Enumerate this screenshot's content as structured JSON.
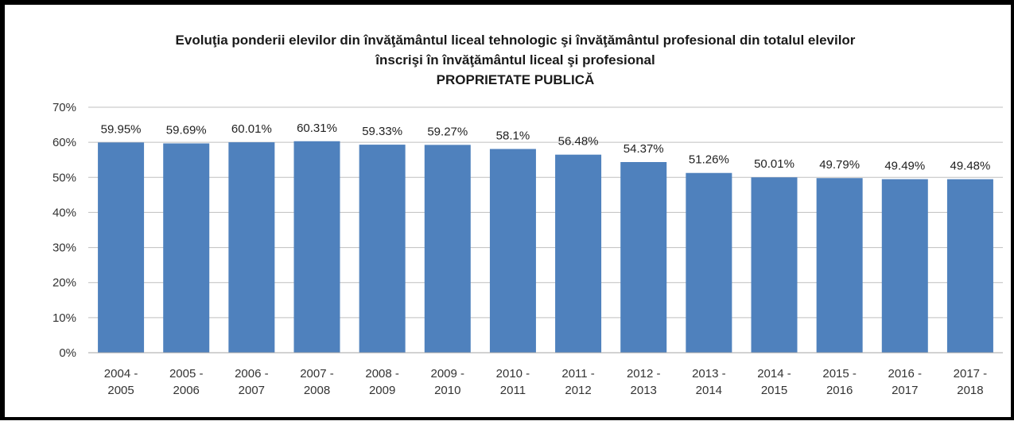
{
  "chart_data": {
    "type": "bar",
    "title_lines": [
      "Evoluţia ponderii elevilor din învăţământul liceal tehnologic şi învăţământul profesional din totalul elevilor",
      "înscrişi în învăţământul liceal şi profesional",
      "PROPRIETATE PUBLICĂ"
    ],
    "xlabel": "",
    "ylabel": "",
    "ylim": [
      0,
      70
    ],
    "y_ticks": [
      "0%",
      "10%",
      "20%",
      "30%",
      "40%",
      "50%",
      "60%",
      "70%"
    ],
    "grid": true,
    "legend": "none",
    "categories": [
      [
        "2004 -",
        "2005"
      ],
      [
        "2005 -",
        "2006"
      ],
      [
        "2006 -",
        "2007"
      ],
      [
        "2007 -",
        "2008"
      ],
      [
        "2008 -",
        "2009"
      ],
      [
        "2009 -",
        "2010"
      ],
      [
        "2010 -",
        "2011"
      ],
      [
        "2011 -",
        "2012"
      ],
      [
        "2012 -",
        "2013"
      ],
      [
        "2013 -",
        "2014"
      ],
      [
        "2014 -",
        "2015"
      ],
      [
        "2015 -",
        "2016"
      ],
      [
        "2016 -",
        "2017"
      ],
      [
        "2017 -",
        "2018"
      ]
    ],
    "values": [
      59.95,
      59.69,
      60.01,
      60.31,
      59.33,
      59.27,
      58.1,
      56.48,
      54.37,
      51.26,
      50.01,
      49.79,
      49.49,
      49.48
    ],
    "data_labels": [
      "59.95%",
      "59.69%",
      "60.01%",
      "60.31%",
      "59.33%",
      "59.27%",
      "58.1%",
      "56.48%",
      "54.37%",
      "51.26%",
      "50.01%",
      "49.79%",
      "49.49%",
      "49.48%"
    ],
    "bar_color": "#4f81bd",
    "grid_color": "#bfbfbf"
  }
}
